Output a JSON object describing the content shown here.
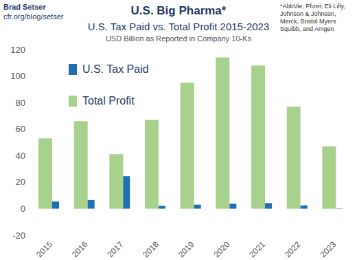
{
  "chart_data": {
    "type": "bar",
    "title": "U.S. Big Pharma*",
    "subtitle": "U.S. Tax Paid vs. Total Profit 2015-2023",
    "annotations": [
      "Brad Setser",
      "cfr.org/blog/setser",
      "USD Billion as Reported in Company 10-Ks",
      "*AbbVie, Pfizer, Eli Lilly, Johnson & Johnson, Merck, Bristol Myers Squibb, and Amgen"
    ],
    "categories": [
      "2015",
      "2016",
      "2017",
      "2018",
      "2019",
      "2020",
      "2021",
      "2022",
      "2023"
    ],
    "series": [
      {
        "name": "U.S. Tax Paid",
        "color": "#1f6fb2",
        "values": [
          5.5,
          6.5,
          24.5,
          2.2,
          3,
          3.8,
          4.2,
          2.5,
          0.3
        ]
      },
      {
        "name": "Total Profit",
        "color": "#a9d18e",
        "values": [
          53,
          66,
          41,
          67,
          95,
          114,
          108,
          77,
          47
        ]
      }
    ],
    "ylim": [
      -20,
      120
    ],
    "yticks": [
      -20,
      0,
      20,
      40,
      60,
      80,
      100,
      120
    ],
    "grid": false,
    "legend": "upper left"
  }
}
